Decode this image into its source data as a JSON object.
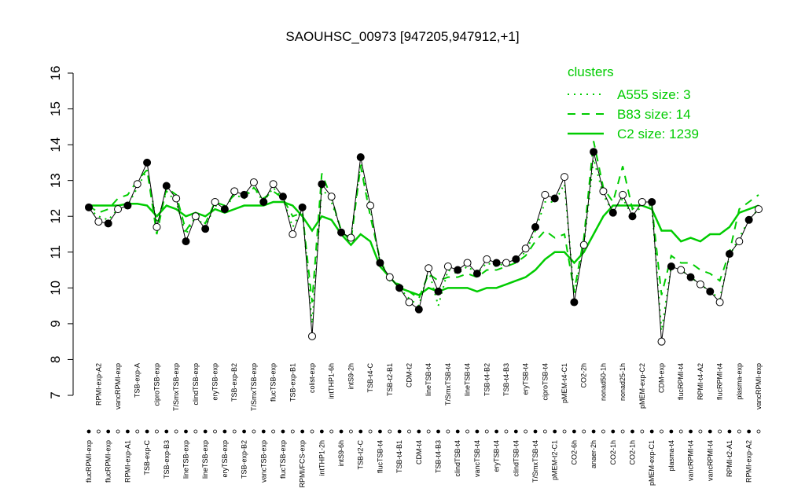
{
  "chart_data": {
    "type": "line",
    "title": "SAOUHSC_00973 [947205,947912,+1]",
    "ylim": [
      7,
      16
    ],
    "yticks": [
      7,
      8,
      9,
      10,
      11,
      12,
      13,
      14,
      15,
      16
    ],
    "color": "#000000",
    "categories": [
      "flucRPMI-exp",
      "RPMI-exp-A2",
      "flucRPMI-exp",
      "vancRPMI-exp",
      "RPMI-exp-A1",
      "TSB-exp-A",
      "TSB-exp-C",
      "ciproTSB-exp",
      "TSB-exp-B3",
      "T/SmxTSB-exp",
      "lineTSB-exp",
      "clindTSB-exp",
      "lineTSB-exp",
      "eryTSB-exp",
      "eryTSB-exp",
      "TSB-exp-B2",
      "TSB-exp-B2",
      "T/SmxTSB-exp",
      "vancTSB-exp",
      "flucTSB-exp",
      "flucTSB-exp",
      "TSB-exp-B1",
      "RPMI/FCS-exp",
      "colist-exp",
      "intTHP1-2h",
      "intTHP1-6h",
      "intS9-6h",
      "intS9-2h",
      "TSB-t2-C",
      "TSB-t4-C",
      "flucTSB-t4",
      "TSB-t2-B1",
      "TSB-t4-B1",
      "CDM-t2",
      "CDM-t4",
      "lineTSB-t4",
      "TSB-t4-B3",
      "T/SmxTSB-t4",
      "clindTSB-t4",
      "lineTSB-t4",
      "vancTSB-t4",
      "TSB-t4-B2",
      "eryTSB-t4",
      "TSB-t4-B3",
      "clindTSB-t4",
      "eryTSB-t4",
      "T/SmxTSB-t4",
      "ciproTSB-t4",
      "pMEM-t2-C1",
      "pMEM-t4-C1",
      "CO2-6h",
      "CO2-2h",
      "anaer-2h",
      "nonad50-1h",
      "CO2-1h",
      "nonad25-1h",
      "CO2-1h",
      "pMEM-exp-C2",
      "pMEM-exp-C1",
      "CDM-exp",
      "plasma-t4",
      "flucRPMI-t4",
      "vancRPMI-t4",
      "RPMI-t4-A2",
      "vancRPMI-t4",
      "flucRPMI-t4",
      "RPMI-t2-A1",
      "plasma-exp",
      "RPMI-exp-A2",
      "vancRPMI-exp"
    ],
    "values": [
      12.25,
      11.85,
      11.8,
      12.2,
      12.3,
      12.9,
      13.5,
      11.7,
      12.85,
      12.5,
      11.3,
      12.0,
      11.65,
      12.4,
      12.2,
      12.7,
      12.6,
      12.95,
      12.4,
      12.9,
      12.55,
      11.5,
      12.25,
      8.65,
      12.9,
      12.55,
      11.55,
      11.4,
      13.65,
      12.3,
      10.7,
      10.3,
      10.0,
      9.6,
      9.4,
      10.55,
      9.9,
      10.6,
      10.5,
      10.7,
      10.4,
      10.8,
      10.7,
      10.7,
      10.8,
      11.1,
      11.7,
      12.6,
      12.5,
      13.1,
      9.6,
      11.2,
      13.8,
      12.7,
      12.1,
      12.6,
      12.0,
      12.4,
      12.4,
      8.5,
      10.6,
      10.5,
      10.3,
      10.1,
      9.9,
      9.6,
      10.95,
      11.3,
      11.9,
      12.2
    ],
    "legend_title": "clusters",
    "series": [
      {
        "name": "A555 size: 3",
        "color": "#00cc00",
        "style": "dotted",
        "values": [
          12.2,
          12.0,
          11.9,
          12.2,
          12.3,
          12.8,
          13.3,
          11.8,
          12.7,
          12.4,
          11.5,
          12.0,
          11.7,
          12.3,
          12.2,
          12.6,
          12.5,
          12.8,
          12.4,
          12.8,
          12.5,
          11.7,
          12.2,
          9.0,
          12.8,
          12.4,
          11.6,
          11.4,
          13.5,
          12.2,
          10.7,
          10.3,
          10.0,
          9.7,
          9.5,
          10.5,
          9.5,
          10.5,
          10.4,
          10.6,
          10.4,
          10.7,
          10.6,
          10.7,
          10.8,
          11.0,
          11.6,
          12.4,
          12.4,
          12.9,
          9.8,
          11.2,
          13.6,
          12.6,
          12.1,
          12.5,
          12.0,
          12.3,
          12.3,
          8.8,
          10.6,
          10.5,
          10.3,
          10.1,
          9.9,
          9.7,
          10.9,
          11.4,
          11.9,
          12.2
        ]
      },
      {
        "name": "B83 size: 14",
        "color": "#00cc00",
        "style": "dashed",
        "values": [
          12.3,
          12.1,
          12.2,
          12.5,
          12.6,
          13.0,
          13.3,
          11.5,
          12.8,
          12.6,
          11.6,
          12.0,
          11.8,
          12.4,
          12.3,
          12.6,
          12.6,
          12.8,
          12.5,
          12.7,
          12.5,
          12.0,
          12.1,
          9.6,
          13.2,
          12.5,
          11.6,
          11.3,
          13.4,
          12.0,
          10.8,
          10.2,
          10.1,
          9.9,
          9.7,
          10.4,
          10.2,
          10.3,
          10.3,
          10.4,
          10.3,
          10.5,
          10.5,
          10.6,
          10.7,
          10.9,
          11.3,
          11.6,
          11.4,
          11.5,
          9.9,
          11.4,
          14.1,
          12.8,
          12.4,
          13.4,
          12.2,
          12.4,
          12.3,
          9.8,
          10.9,
          10.7,
          10.7,
          10.5,
          10.4,
          10.2,
          11.0,
          12.2,
          12.4,
          12.6
        ]
      },
      {
        "name": "C2 size: 1239",
        "color": "#00cc00",
        "style": "solid",
        "values": [
          12.3,
          12.3,
          12.3,
          12.3,
          12.35,
          12.35,
          12.3,
          12.0,
          12.3,
          12.2,
          12.0,
          12.1,
          12.0,
          12.2,
          12.1,
          12.2,
          12.3,
          12.3,
          12.3,
          12.4,
          12.4,
          12.3,
          12.0,
          11.6,
          12.0,
          11.9,
          11.5,
          11.2,
          11.5,
          11.3,
          10.6,
          10.3,
          10.0,
          9.9,
          9.8,
          10.0,
          9.9,
          10.0,
          10.0,
          10.0,
          9.9,
          10.0,
          10.0,
          10.1,
          10.2,
          10.3,
          10.5,
          10.8,
          11.0,
          11.0,
          10.7,
          11.0,
          11.5,
          12.0,
          12.3,
          12.3,
          12.3,
          12.3,
          12.2,
          11.6,
          11.6,
          11.3,
          11.4,
          11.3,
          11.5,
          11.5,
          11.7,
          12.1,
          12.2,
          12.3
        ]
      }
    ]
  }
}
